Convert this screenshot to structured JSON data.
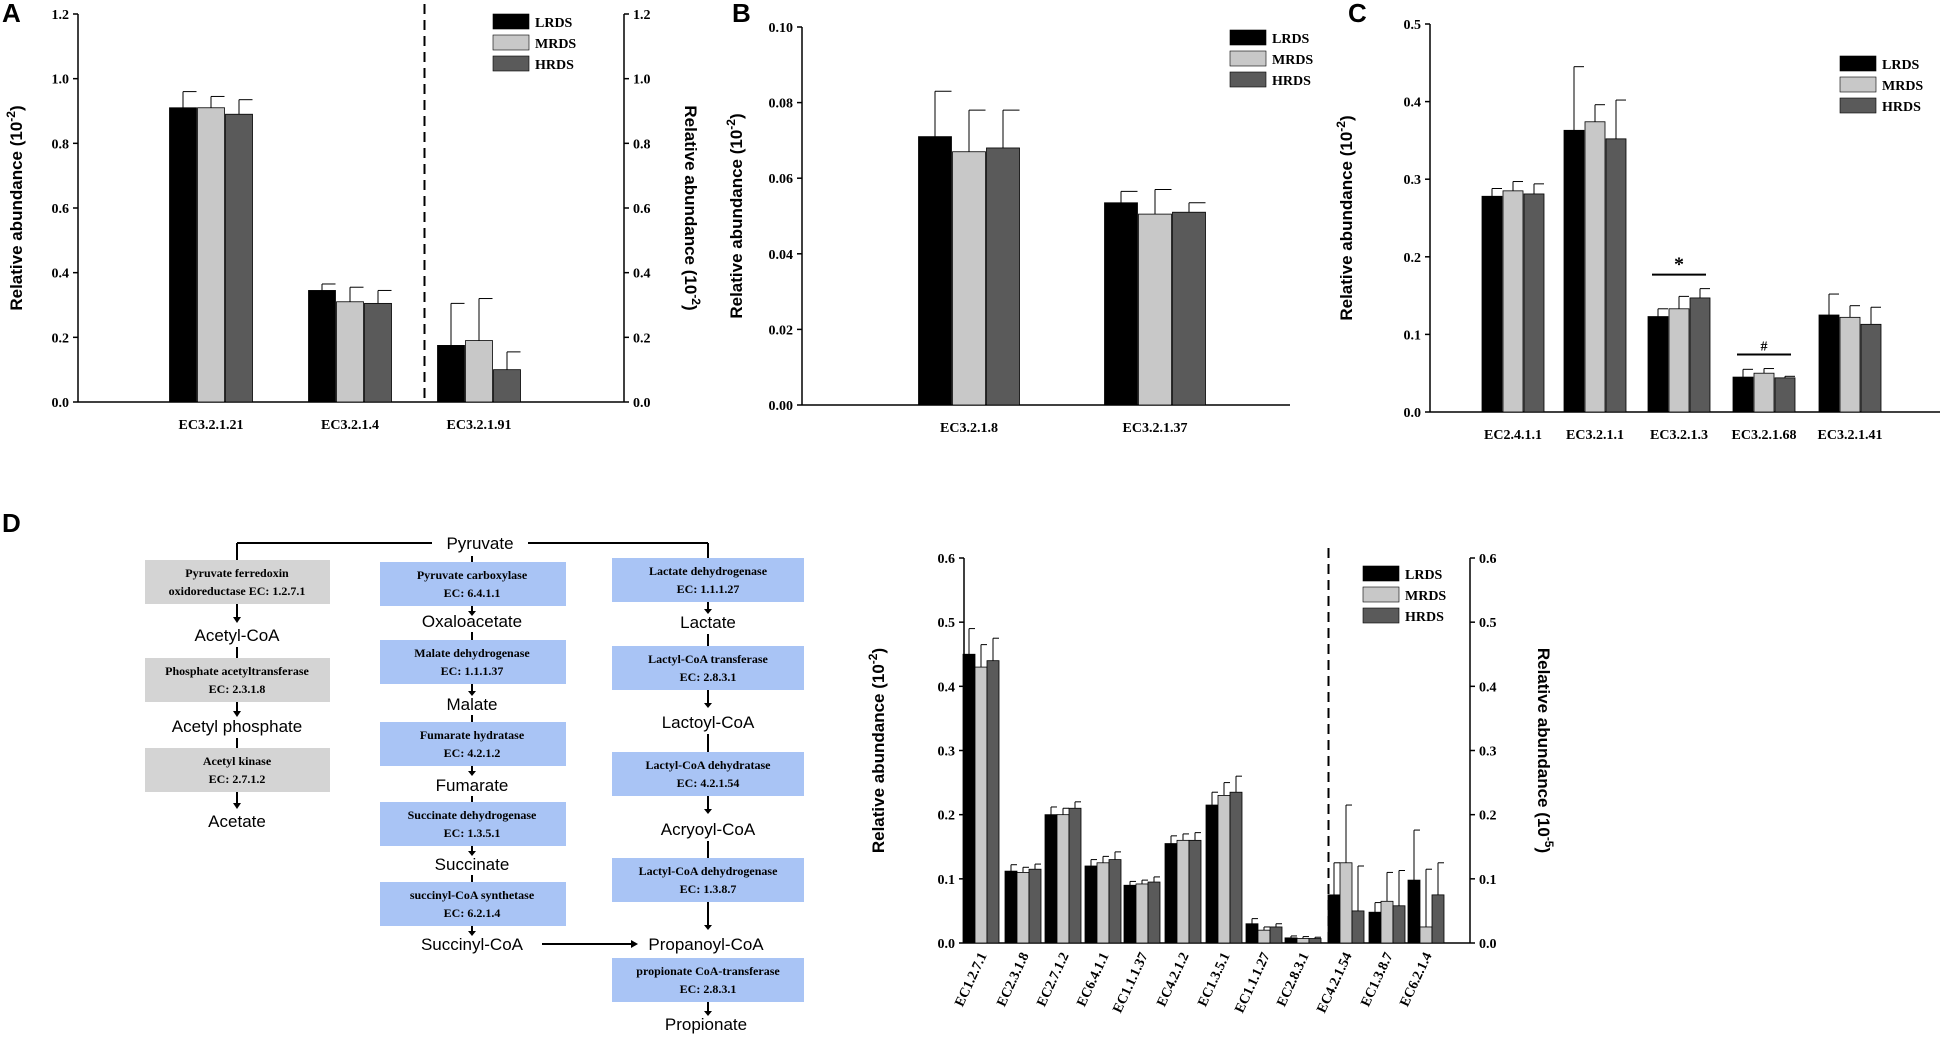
{
  "panel_letters": [
    "A",
    "B",
    "C",
    "D"
  ],
  "colors": {
    "LRDS": "#000000",
    "MRDS": "#c8c8c8",
    "HRDS": "#5a5a5a",
    "gray_box": "#d4d4d4",
    "blue_box": "#a9c4f5"
  },
  "legend": [
    "LRDS",
    "MRDS",
    "HRDS"
  ],
  "chart_data": [
    {
      "id": "A",
      "type": "bar",
      "categories": [
        "EC3.2.1.21",
        "EC3.2.1.4",
        "EC3.2.1.91"
      ],
      "series": [
        {
          "name": "LRDS",
          "values": [
            0.91,
            0.345,
            0.175
          ],
          "errors": [
            0.05,
            0.02,
            0.13
          ]
        },
        {
          "name": "MRDS",
          "values": [
            0.91,
            0.31,
            0.19
          ],
          "errors": [
            0.035,
            0.045,
            0.13
          ]
        },
        {
          "name": "HRDS",
          "values": [
            0.89,
            0.305,
            0.1
          ],
          "errors": [
            0.045,
            0.04,
            0.055
          ]
        }
      ],
      "ylabel": "Relative abundance (10-2)",
      "ylabel_right": "Relative abundance (10-2)",
      "ylim": [
        0,
        1.2
      ],
      "yticks": [
        "0.0",
        "0.2",
        "0.4",
        "0.6",
        "0.8",
        "1.0",
        "1.2"
      ],
      "dashed_after_index": 1
    },
    {
      "id": "B",
      "type": "bar",
      "categories": [
        "EC3.2.1.8",
        "EC3.2.1.37"
      ],
      "series": [
        {
          "name": "LRDS",
          "values": [
            0.071,
            0.0535
          ],
          "errors": [
            0.012,
            0.003
          ]
        },
        {
          "name": "MRDS",
          "values": [
            0.067,
            0.0505
          ],
          "errors": [
            0.011,
            0.0065
          ]
        },
        {
          "name": "HRDS",
          "values": [
            0.068,
            0.051
          ],
          "errors": [
            0.01,
            0.0025
          ]
        }
      ],
      "ylabel": "Relative abundance (10-2)",
      "ylim": [
        0,
        0.1
      ],
      "yticks": [
        "0.00",
        "0.02",
        "0.04",
        "0.06",
        "0.08",
        "0.10"
      ]
    },
    {
      "id": "C",
      "type": "bar",
      "categories": [
        "EC2.4.1.1",
        "EC3.2.1.1",
        "EC3.2.1.3",
        "EC3.2.1.68",
        "EC3.2.1.41"
      ],
      "series": [
        {
          "name": "LRDS",
          "values": [
            0.278,
            0.363,
            0.123,
            0.045,
            0.125
          ],
          "errors": [
            0.01,
            0.082,
            0.01,
            0.01,
            0.027
          ]
        },
        {
          "name": "MRDS",
          "values": [
            0.285,
            0.374,
            0.133,
            0.05,
            0.122
          ],
          "errors": [
            0.012,
            0.022,
            0.016,
            0.006,
            0.015
          ]
        },
        {
          "name": "HRDS",
          "values": [
            0.281,
            0.352,
            0.147,
            0.044,
            0.113
          ],
          "errors": [
            0.013,
            0.05,
            0.012,
            0.002,
            0.022
          ]
        }
      ],
      "ylabel": "Relative abundance (10-2)",
      "ylim": [
        0,
        0.5
      ],
      "yticks": [
        "0.0",
        "0.1",
        "0.2",
        "0.3",
        "0.4",
        "0.5"
      ],
      "annotations": [
        {
          "text": "*",
          "category": "EC3.2.1.3"
        },
        {
          "text": "#",
          "category": "EC3.2.1.68"
        }
      ]
    },
    {
      "id": "D",
      "type": "bar",
      "categories": [
        "EC1.2.7.1",
        "EC2.3.1.8",
        "EC2.7.1.2",
        "EC6.4.1.1",
        "EC1.1.1.37",
        "EC4.2.1.2",
        "EC1.3.5.1",
        "EC1.1.1.27",
        "EC2.8.3.1",
        "EC4.2.1.54",
        "EC1.3.8.7",
        "EC6.2.1.4"
      ],
      "series": [
        {
          "name": "LRDS",
          "values": [
            0.45,
            0.112,
            0.2,
            0.12,
            0.09,
            0.155,
            0.215,
            0.03,
            0.008,
            0.075,
            0.048,
            0.098
          ],
          "errors": [
            0.04,
            0.01,
            0.012,
            0.01,
            0.006,
            0.012,
            0.02,
            0.008,
            0.003,
            0.05,
            0.015,
            0.078
          ]
        },
        {
          "name": "MRDS",
          "values": [
            0.43,
            0.11,
            0.2,
            0.125,
            0.092,
            0.16,
            0.23,
            0.02,
            0.007,
            0.125,
            0.065,
            0.025
          ],
          "errors": [
            0.035,
            0.008,
            0.01,
            0.01,
            0.006,
            0.01,
            0.02,
            0.005,
            0.003,
            0.09,
            0.045,
            0.09
          ]
        },
        {
          "name": "HRDS",
          "values": [
            0.44,
            0.115,
            0.21,
            0.13,
            0.095,
            0.16,
            0.235,
            0.025,
            0.007,
            0.05,
            0.058,
            0.075
          ],
          "errors": [
            0.035,
            0.008,
            0.01,
            0.012,
            0.008,
            0.012,
            0.025,
            0.005,
            0.002,
            0.07,
            0.055,
            0.05
          ]
        }
      ],
      "ylabel": "Relative abundance (10-2)",
      "ylabel_right": "Relative abundance (10-5)",
      "ylim": [
        0,
        0.6
      ],
      "yticks": [
        "0.0",
        "0.1",
        "0.2",
        "0.3",
        "0.4",
        "0.5",
        "0.6"
      ],
      "dashed_after_index": 8
    }
  ],
  "pathway": {
    "root": "Pyruvate",
    "col1": {
      "boxes": [
        {
          "name": "Pyruvate ferredoxin",
          "name2": "oxidoreductase EC: 1.2.7.1"
        },
        {
          "name": "Phosphate acetyltransferase",
          "name2": "EC: 2.3.1.8"
        },
        {
          "name": "Acetyl kinase",
          "name2": "EC: 2.7.1.2"
        }
      ],
      "metabolites": [
        "Acetyl-CoA",
        "Acetyl phosphate",
        "Acetate"
      ]
    },
    "col2": {
      "boxes": [
        {
          "name": "Pyruvate carboxylase",
          "name2": "EC: 6.4.1.1"
        },
        {
          "name": "Malate dehydrogenase",
          "name2": "EC: 1.1.1.37"
        },
        {
          "name": "Fumarate hydratase",
          "name2": "EC: 4.2.1.2"
        },
        {
          "name": "Succinate dehydrogenase",
          "name2": "EC: 1.3.5.1"
        },
        {
          "name": "succinyl-CoA synthetase",
          "name2": "EC: 6.2.1.4"
        }
      ],
      "metabolites": [
        "Oxaloacetate",
        "Malate",
        "Fumarate",
        "Succinate",
        "Succinyl-CoA"
      ]
    },
    "col3": {
      "boxes": [
        {
          "name": "Lactate dehydrogenase",
          "name2": "EC: 1.1.1.27"
        },
        {
          "name": "Lactyl-CoA transferase",
          "name2": "EC: 2.8.3.1"
        },
        {
          "name": "Lactyl-CoA dehydratase",
          "name2": "EC: 4.2.1.54"
        },
        {
          "name": "Lactyl-CoA dehydrogenase",
          "name2": "EC: 1.3.8.7"
        },
        {
          "name": "propionate CoA-transferase",
          "name2": "EC: 2.8.3.1"
        }
      ],
      "metabolites": [
        "Lactate",
        "Lactoyl-CoA",
        "Acryoyl-CoA",
        "Propanoyl-CoA",
        "Propionate"
      ]
    }
  }
}
